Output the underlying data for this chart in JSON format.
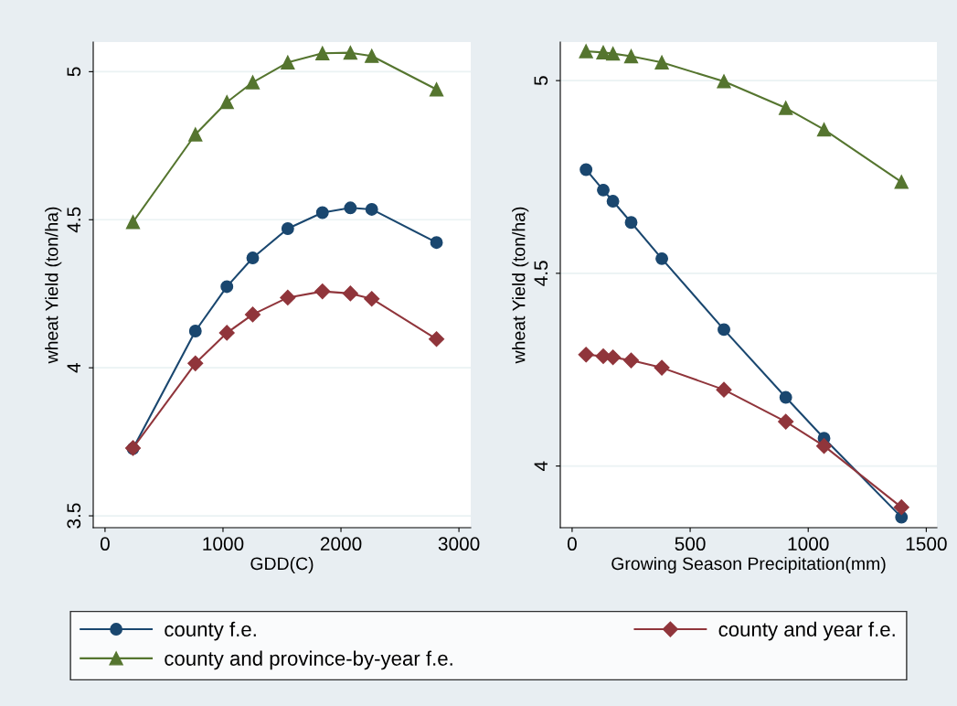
{
  "chart_data": [
    {
      "type": "line",
      "xlabel": "GDD(C)",
      "ylabel": "wheat Yield (ton/ha)",
      "x": [
        237,
        766,
        1033,
        1252,
        1549,
        1843,
        2080,
        2261,
        2810
      ],
      "xlim": [
        -100,
        3100
      ],
      "xticks": [
        0,
        1000,
        2000,
        3000
      ],
      "ylim": [
        3.46,
        5.1
      ],
      "yticks": [
        3.5,
        4,
        4.5,
        5
      ],
      "grid": "y",
      "legend": "bottom",
      "series": [
        {
          "name": "county f.e.",
          "color": "#1a476f",
          "marker": "circle",
          "values": [
            3.727,
            4.124,
            4.274,
            4.371,
            4.47,
            4.524,
            4.54,
            4.535,
            4.423
          ]
        },
        {
          "name": "county and year f.e.",
          "color": "#90353b",
          "marker": "diamond",
          "values": [
            3.729,
            4.015,
            4.118,
            4.18,
            4.237,
            4.258,
            4.251,
            4.233,
            4.097
          ]
        },
        {
          "name": "county and province-by-year f.e.",
          "color": "#55752f",
          "marker": "triangle",
          "values": [
            4.492,
            4.788,
            4.897,
            4.964,
            5.031,
            5.062,
            5.064,
            5.053,
            4.94
          ]
        }
      ]
    },
    {
      "type": "line",
      "xlabel": "Growing Season Precipitation(mm)",
      "ylabel": "wheat Yield (ton/ha)",
      "x": [
        59,
        132,
        173,
        250,
        380,
        643,
        905,
        1067,
        1395
      ],
      "xlim": [
        -50,
        1545
      ],
      "xticks": [
        0,
        500,
        1000,
        1500
      ],
      "ylim": [
        3.84,
        5.1
      ],
      "yticks": [
        4,
        4.5,
        5
      ],
      "grid": "y",
      "series": [
        {
          "color": "#1a476f",
          "marker": "circle",
          "values": [
            4.769,
            4.716,
            4.687,
            4.632,
            4.538,
            4.354,
            4.178,
            4.072,
            3.867
          ]
        },
        {
          "color": "#90353b",
          "marker": "diamond",
          "values": [
            4.289,
            4.285,
            4.282,
            4.274,
            4.255,
            4.198,
            4.115,
            4.052,
            3.893
          ]
        },
        {
          "color": "#55752f",
          "marker": "triangle",
          "values": [
            5.076,
            5.073,
            5.07,
            5.063,
            5.047,
            4.998,
            4.929,
            4.873,
            4.737
          ]
        }
      ]
    }
  ]
}
